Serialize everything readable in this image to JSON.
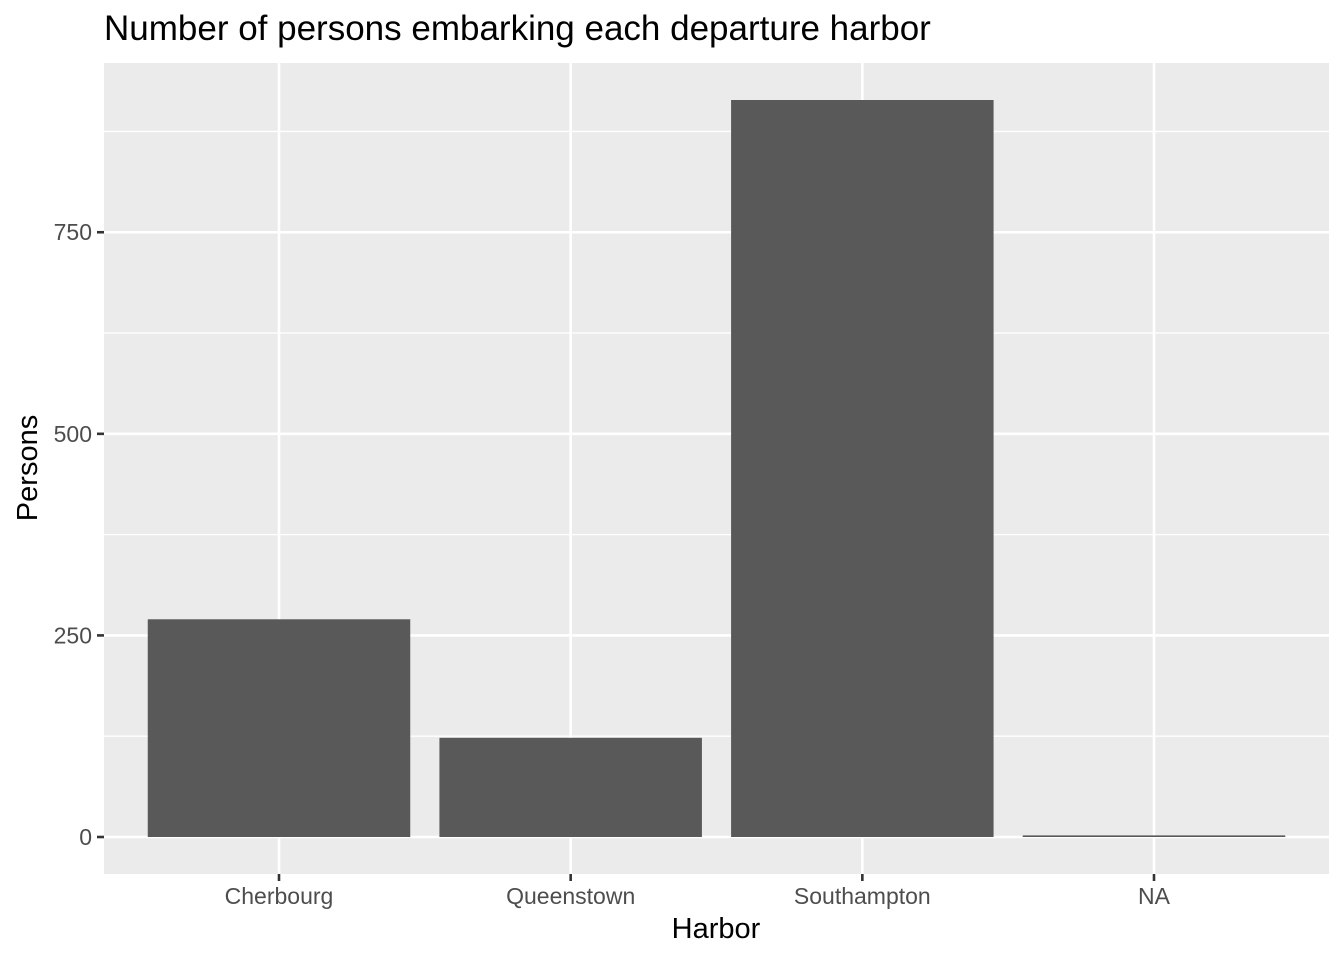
{
  "chart_data": {
    "type": "bar",
    "title": "Number of persons embarking each departure harbor",
    "xlabel": "Harbor",
    "ylabel": "Persons",
    "categories": [
      "Cherbourg",
      "Queenstown",
      "Southampton",
      "NA"
    ],
    "values": [
      270,
      123,
      914,
      2
    ],
    "ylim": [
      0,
      914
    ],
    "yticks": [
      0,
      250,
      500,
      750
    ],
    "grid": true,
    "legend": "none",
    "colors": {
      "bar": "#595959",
      "panel": "#ebebeb",
      "grid": "#ffffff",
      "tick_text": "#4d4d4d",
      "tick_mark": "#333333"
    }
  }
}
